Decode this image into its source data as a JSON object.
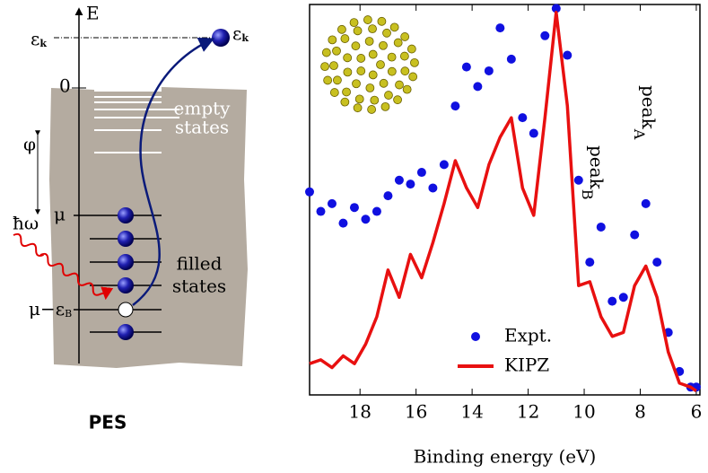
{
  "diagram": {
    "axis_label": "E",
    "ek_left": {
      "text": "ε",
      "sub": "k"
    },
    "ek_right": {
      "text": "ε",
      "sub": "k"
    },
    "zero": "0",
    "phi": "φ",
    "empty": [
      "empty",
      "states"
    ],
    "mu": "μ",
    "photon": "ħω",
    "filled": [
      "filled",
      "states"
    ],
    "mu_eb": {
      "text": "μ−ε",
      "sub": "B"
    },
    "caption": "PES"
  },
  "chart_data": {
    "type": "line",
    "xlabel": "Binding energy (eV)",
    "xlim": [
      19.8,
      5.87
    ],
    "xticks": [
      18,
      16,
      14,
      12,
      10,
      8,
      6
    ],
    "ylim": [
      0,
      1
    ],
    "legend": "bottom-center",
    "annotations": [
      {
        "text": "peak",
        "sub": "A"
      },
      {
        "text": "peak",
        "sub": "B"
      }
    ],
    "x": [
      19.8,
      19.4,
      19,
      18.6,
      18.2,
      17.8,
      17.4,
      17,
      16.6,
      16.2,
      15.8,
      15.4,
      15,
      14.6,
      14.2,
      13.8,
      13.4,
      13,
      12.6,
      12.2,
      11.8,
      11.4,
      11,
      10.6,
      10.2,
      9.8,
      9.4,
      9,
      8.6,
      8.2,
      7.8,
      7.4,
      7,
      6.6,
      6.2,
      6
    ],
    "series": [
      {
        "name": "Expt.",
        "color": "#1010e0",
        "style": "points",
        "values": [
          0.52,
          0.47,
          0.49,
          0.44,
          0.48,
          0.45,
          0.47,
          0.51,
          0.55,
          0.54,
          0.57,
          0.53,
          0.59,
          0.74,
          0.84,
          0.79,
          0.83,
          0.94,
          0.86,
          0.71,
          0.67,
          0.92,
          0.99,
          0.87,
          0.55,
          0.34,
          0.43,
          0.24,
          0.25,
          0.41,
          0.49,
          0.34,
          0.16,
          0.06,
          0.02,
          0.02
        ]
      },
      {
        "name": "KIPZ",
        "color": "#e81010",
        "style": "line",
        "values": [
          0.08,
          0.09,
          0.07,
          0.1,
          0.08,
          0.13,
          0.2,
          0.32,
          0.25,
          0.36,
          0.3,
          0.39,
          0.49,
          0.6,
          0.53,
          0.48,
          0.59,
          0.66,
          0.71,
          0.53,
          0.46,
          0.71,
          0.98,
          0.74,
          0.28,
          0.29,
          0.2,
          0.15,
          0.16,
          0.28,
          0.33,
          0.25,
          0.11,
          0.03,
          0.02,
          0.01
        ]
      }
    ]
  }
}
